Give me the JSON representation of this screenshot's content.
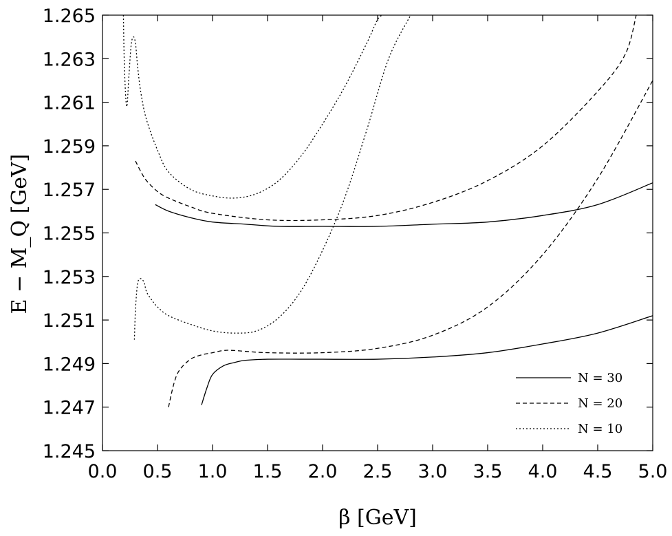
{
  "chart_data": {
    "type": "line",
    "title": "",
    "xlabel": "β [GeV]",
    "ylabel": "E − M_Q [GeV]",
    "xlim": [
      0.0,
      5.0
    ],
    "ylim": [
      1.245,
      1.265
    ],
    "x_ticks": [
      "0.0",
      "0.5",
      "1.0",
      "1.5",
      "2.0",
      "2.5",
      "3.0",
      "3.5",
      "4.0",
      "4.5",
      "5.0"
    ],
    "y_ticks": [
      "1.245",
      "1.247",
      "1.249",
      "1.251",
      "1.253",
      "1.255",
      "1.257",
      "1.259",
      "1.261",
      "1.263",
      "1.265"
    ],
    "grid": false,
    "legend_position": "bottom-right",
    "series": [
      {
        "name": "N = 30",
        "dash": "solid",
        "curves": [
          {
            "x": [
              0.48,
              0.6,
              0.8,
              1.0,
              1.3,
              1.6,
              2.0,
              2.5,
              3.0,
              3.5,
              4.0,
              4.5,
              5.0
            ],
            "y": [
              1.2563,
              1.256,
              1.2557,
              1.2555,
              1.2554,
              1.2553,
              1.2553,
              1.2553,
              1.2554,
              1.2555,
              1.2558,
              1.2563,
              1.2573
            ]
          },
          {
            "x": [
              0.9,
              0.95,
              1.0,
              1.1,
              1.2,
              1.3,
              1.5,
              1.8,
              2.0,
              2.5,
              3.0,
              3.5,
              4.0,
              4.5,
              5.0
            ],
            "y": [
              1.2471,
              1.2479,
              1.2485,
              1.2489,
              1.24905,
              1.24915,
              1.2492,
              1.2492,
              1.2492,
              1.2492,
              1.2493,
              1.2495,
              1.2499,
              1.2504,
              1.2512
            ]
          }
        ]
      },
      {
        "name": "N = 20",
        "dash": "dashed",
        "curves": [
          {
            "x": [
              0.3,
              0.35,
              0.4,
              0.5,
              0.6,
              0.8,
              1.0,
              1.5,
              2.0,
              2.5,
              3.0,
              3.5,
              4.0,
              4.5,
              4.75,
              4.85
            ],
            "y": [
              1.2583,
              1.2578,
              1.2574,
              1.2569,
              1.2566,
              1.2562,
              1.2559,
              1.2556,
              1.2556,
              1.2558,
              1.2564,
              1.2574,
              1.259,
              1.2615,
              1.2632,
              1.265
            ]
          },
          {
            "x": [
              0.6,
              0.65,
              0.7,
              0.8,
              0.9,
              1.0,
              1.1,
              1.2,
              1.5,
              2.0,
              2.5,
              3.0,
              3.5,
              4.0,
              4.5,
              5.0
            ],
            "y": [
              1.247,
              1.2481,
              1.2487,
              1.2492,
              1.2494,
              1.2495,
              1.2496,
              1.2496,
              1.2495,
              1.2495,
              1.2497,
              1.2503,
              1.2516,
              1.254,
              1.2575,
              1.262
            ]
          }
        ]
      },
      {
        "name": "N = 10",
        "dash": "dotted",
        "curves": [
          {
            "x": [
              0.19,
              0.2,
              0.22,
              0.24,
              0.26,
              0.28,
              0.3,
              0.32,
              0.35,
              0.4,
              0.5,
              0.6,
              0.8,
              1.0,
              1.2,
              1.4,
              1.6,
              1.8,
              2.0,
              2.2,
              2.4,
              2.5,
              2.55
            ],
            "y": [
              1.265,
              1.2625,
              1.2608,
              1.2622,
              1.2636,
              1.264,
              1.2637,
              1.2626,
              1.2614,
              1.2602,
              1.2588,
              1.2578,
              1.257,
              1.2567,
              1.2566,
              1.2568,
              1.2574,
              1.2585,
              1.26,
              1.2617,
              1.2637,
              1.2648,
              1.265
            ]
          },
          {
            "x": [
              0.29,
              0.3,
              0.32,
              0.35,
              0.38,
              0.4,
              0.45,
              0.5,
              0.6,
              0.8,
              1.0,
              1.2,
              1.4,
              1.6,
              1.8,
              2.0,
              2.2,
              2.4,
              2.6,
              2.8
            ],
            "y": [
              1.2501,
              1.2515,
              1.2527,
              1.2529,
              1.2527,
              1.2523,
              1.2519,
              1.2516,
              1.2512,
              1.2508,
              1.2505,
              1.2504,
              1.2505,
              1.2511,
              1.2523,
              1.2542,
              1.2566,
              1.2597,
              1.263,
              1.265
            ]
          }
        ]
      }
    ]
  }
}
